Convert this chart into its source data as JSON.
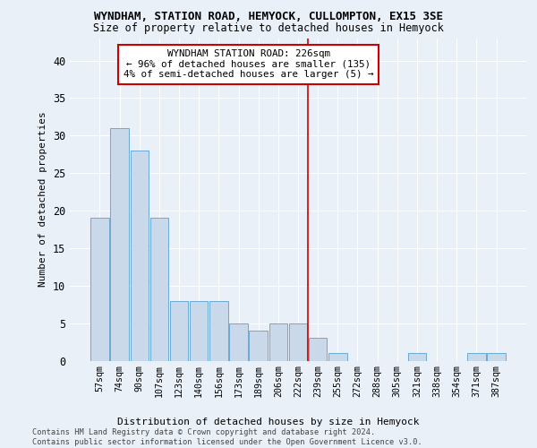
{
  "title1": "WYNDHAM, STATION ROAD, HEMYOCK, CULLOMPTON, EX15 3SE",
  "title2": "Size of property relative to detached houses in Hemyock",
  "xlabel": "Distribution of detached houses by size in Hemyock",
  "ylabel": "Number of detached properties",
  "bin_labels": [
    "57sqm",
    "74sqm",
    "90sqm",
    "107sqm",
    "123sqm",
    "140sqm",
    "156sqm",
    "173sqm",
    "189sqm",
    "206sqm",
    "222sqm",
    "239sqm",
    "255sqm",
    "272sqm",
    "288sqm",
    "305sqm",
    "321sqm",
    "338sqm",
    "354sqm",
    "371sqm",
    "387sqm"
  ],
  "values": [
    19,
    31,
    28,
    19,
    8,
    8,
    8,
    5,
    4,
    5,
    5,
    3,
    1,
    0,
    0,
    0,
    1,
    0,
    0,
    1,
    1
  ],
  "bar_color": "#c9d9ea",
  "bar_edge_color": "#6aaad4",
  "vline_x": 10.5,
  "vline_color": "#cc0000",
  "annotation_text": "WYNDHAM STATION ROAD: 226sqm\n← 96% of detached houses are smaller (135)\n4% of semi-detached houses are larger (5) →",
  "annotation_box_color": "#ffffff",
  "annotation_box_edge_color": "#cc0000",
  "ylim": [
    0,
    43
  ],
  "yticks": [
    0,
    5,
    10,
    15,
    20,
    25,
    30,
    35,
    40
  ],
  "footer": "Contains HM Land Registry data © Crown copyright and database right 2024.\nContains public sector information licensed under the Open Government Licence v3.0.",
  "bg_color": "#eaf0f8",
  "grid_color": "#ffffff"
}
